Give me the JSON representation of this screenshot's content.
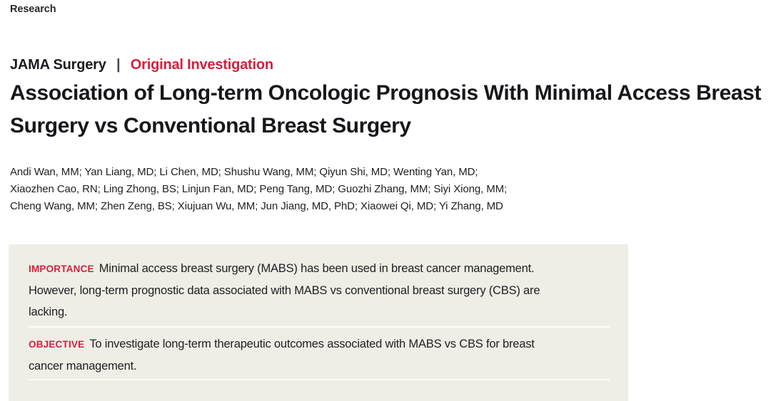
{
  "page": {
    "kicker": "Research",
    "journal": "JAMA Surgery",
    "divider": "|",
    "article_type": "Original Investigation",
    "title": "Association of Long-term Oncologic Prognosis With Minimal Access Breast Surgery vs Conventional Breast Surgery",
    "author_lines": [
      "Andi Wan, MM; Yan Liang, MD; Li Chen, MD; Shushu Wang, MM; Qiyun Shi, MD; Wenting Yan, MD;",
      "Xiaozhen Cao, RN; Ling Zhong, BS; Linjun Fan, MD; Peng Tang, MD; Guozhi Zhang, MM; Siyi Xiong, MM;",
      "Cheng Wang, MM; Zhen Zeng, BS; Xiujuan Wu, MM; Jun Jiang, MD, PhD; Xiaowei Qi, MD; Yi Zhang, MD"
    ]
  },
  "abstract": {
    "sections": [
      {
        "label": "IMPORTANCE",
        "text": "Minimal access breast surgery (MABS) has been used in breast cancer management. However, long-term prognostic data associated with MABS vs conventional breast surgery (CBS) are lacking."
      },
      {
        "label": "OBJECTIVE",
        "text": "To investigate long-term therapeutic outcomes associated with MABS vs CBS for breast cancer management."
      }
    ]
  },
  "colors": {
    "accent_red": "#d4213d",
    "abstract_box_background": "#efeee6",
    "text_dark": "#1e1e22",
    "separator_line": "#fcfcf9"
  }
}
